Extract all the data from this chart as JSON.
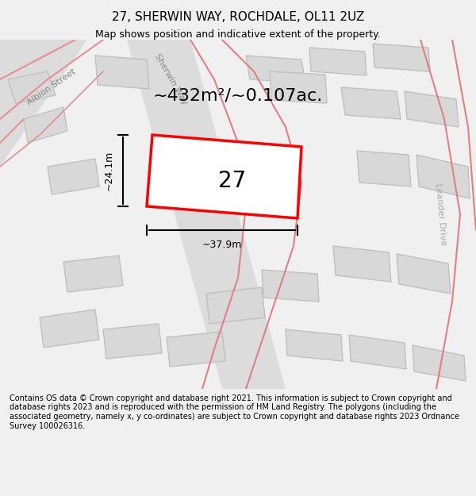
{
  "title": "27, SHERWIN WAY, ROCHDALE, OL11 2UZ",
  "subtitle": "Map shows position and indicative extent of the property.",
  "area_text": "~432m²/~0.107ac.",
  "house_number": "27",
  "dim_width": "~37.9m",
  "dim_height": "~24.1m",
  "footer": "Contains OS data © Crown copyright and database right 2021. This information is subject to Crown copyright and database rights 2023 and is reproduced with the permission of HM Land Registry. The polygons (including the associated geometry, namely x, y co-ordinates) are subject to Crown copyright and database rights 2023 Ordnance Survey 100026316.",
  "bg_color": "#f0f0f0",
  "map_bg": "#f0f0f0",
  "road_color": "#d0d0d0",
  "building_fill": "#d8d8d8",
  "building_edge": "#b0b0b0",
  "highlight_fill": "white",
  "highlight_edge": "#ff0000",
  "road_outline": "#e8c8c8",
  "road_outline2": "#f5b0b0"
}
